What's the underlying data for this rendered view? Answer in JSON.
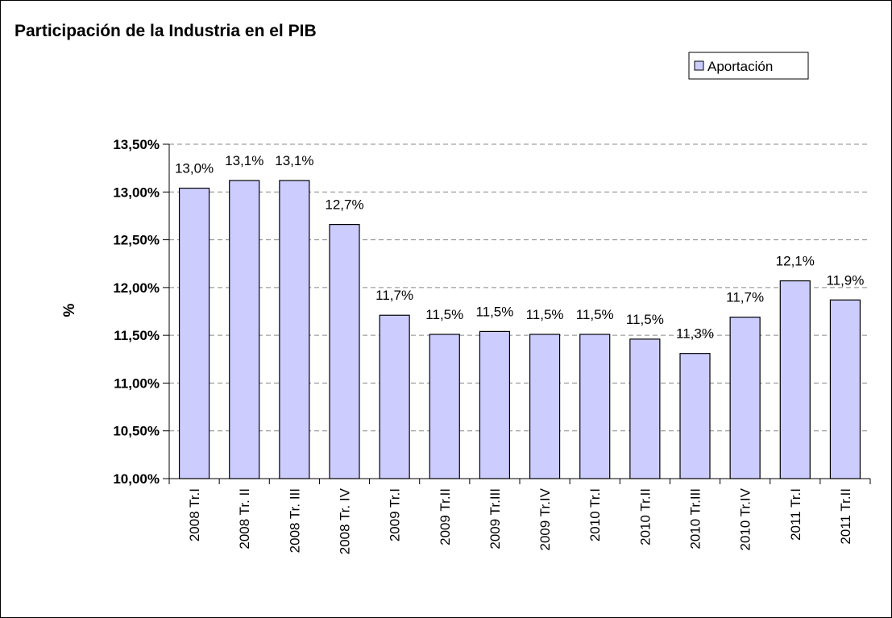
{
  "chart_data": {
    "type": "bar",
    "title": "Participación de la Industria en el PIB",
    "y_label": "%",
    "categories": [
      "2008 Tr.I",
      "2008 Tr. II",
      "2008 Tr. III",
      "2008 Tr. IV",
      "2009 Tr.I",
      "2009 Tr.II",
      "2009 Tr.III",
      "2009 Tr.IV",
      "2010 Tr.I",
      "2010 Tr.II",
      "2010 Tr.III",
      "2010 Tr.IV",
      "2011 Tr.I",
      "2011 Tr.II"
    ],
    "series": [
      {
        "name": "Aportación",
        "color": "#ccccff",
        "values": [
          13.04,
          13.12,
          13.12,
          12.66,
          11.71,
          11.51,
          11.54,
          11.51,
          11.51,
          11.46,
          11.31,
          11.69,
          12.07,
          11.87
        ],
        "value_labels": [
          "13,0%",
          "13,1%",
          "13,1%",
          "12,7%",
          "11,7%",
          "11,5%",
          "11,5%",
          "11,5%",
          "11,5%",
          "11,5%",
          "11,3%",
          "11,7%",
          "12,1%",
          "11,9%"
        ]
      }
    ],
    "ylim": [
      10,
      13.5
    ],
    "yticks": [
      {
        "value": 10,
        "label": "10,00%"
      },
      {
        "value": 10.5,
        "label": "10,50%"
      },
      {
        "value": 11,
        "label": "11,00%"
      },
      {
        "value": 11.5,
        "label": "11,50%"
      },
      {
        "value": 12,
        "label": "12,00%"
      },
      {
        "value": 12.5,
        "label": "12,50%"
      },
      {
        "value": 13,
        "label": "13,00%"
      },
      {
        "value": 13.5,
        "label": "13,50%"
      }
    ],
    "grid": true,
    "legend": "top-right"
  }
}
